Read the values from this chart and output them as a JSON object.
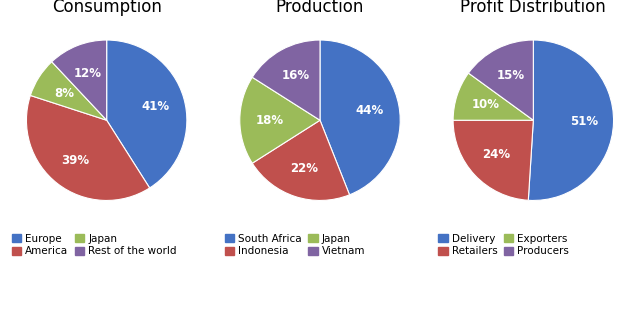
{
  "charts": [
    {
      "title": "Consumption",
      "labels": [
        "Europe",
        "America",
        "Japan",
        "Rest of the world"
      ],
      "values": [
        41,
        39,
        8,
        12
      ],
      "colors": [
        "#4472C4",
        "#C0504D",
        "#9BBB59",
        "#8064A2"
      ],
      "startangle": 90,
      "counterclock": false
    },
    {
      "title": "Production",
      "labels": [
        "South Africa",
        "Indonesia",
        "Japan",
        "Vietnam"
      ],
      "values": [
        44,
        22,
        18,
        16
      ],
      "colors": [
        "#4472C4",
        "#C0504D",
        "#9BBB59",
        "#8064A2"
      ],
      "startangle": 90,
      "counterclock": false
    },
    {
      "title": "Profit Distribution",
      "labels": [
        "Delivery",
        "Retailers",
        "Exporters",
        "Producers"
      ],
      "values": [
        51,
        24,
        10,
        15
      ],
      "colors": [
        "#4472C4",
        "#C0504D",
        "#9BBB59",
        "#8064A2"
      ],
      "startangle": 90,
      "counterclock": false
    }
  ],
  "background_color": "#FFFFFF",
  "text_color": "#000000",
  "title_fontsize": 12,
  "label_fontsize": 8.5,
  "legend_fontsize": 7.5
}
